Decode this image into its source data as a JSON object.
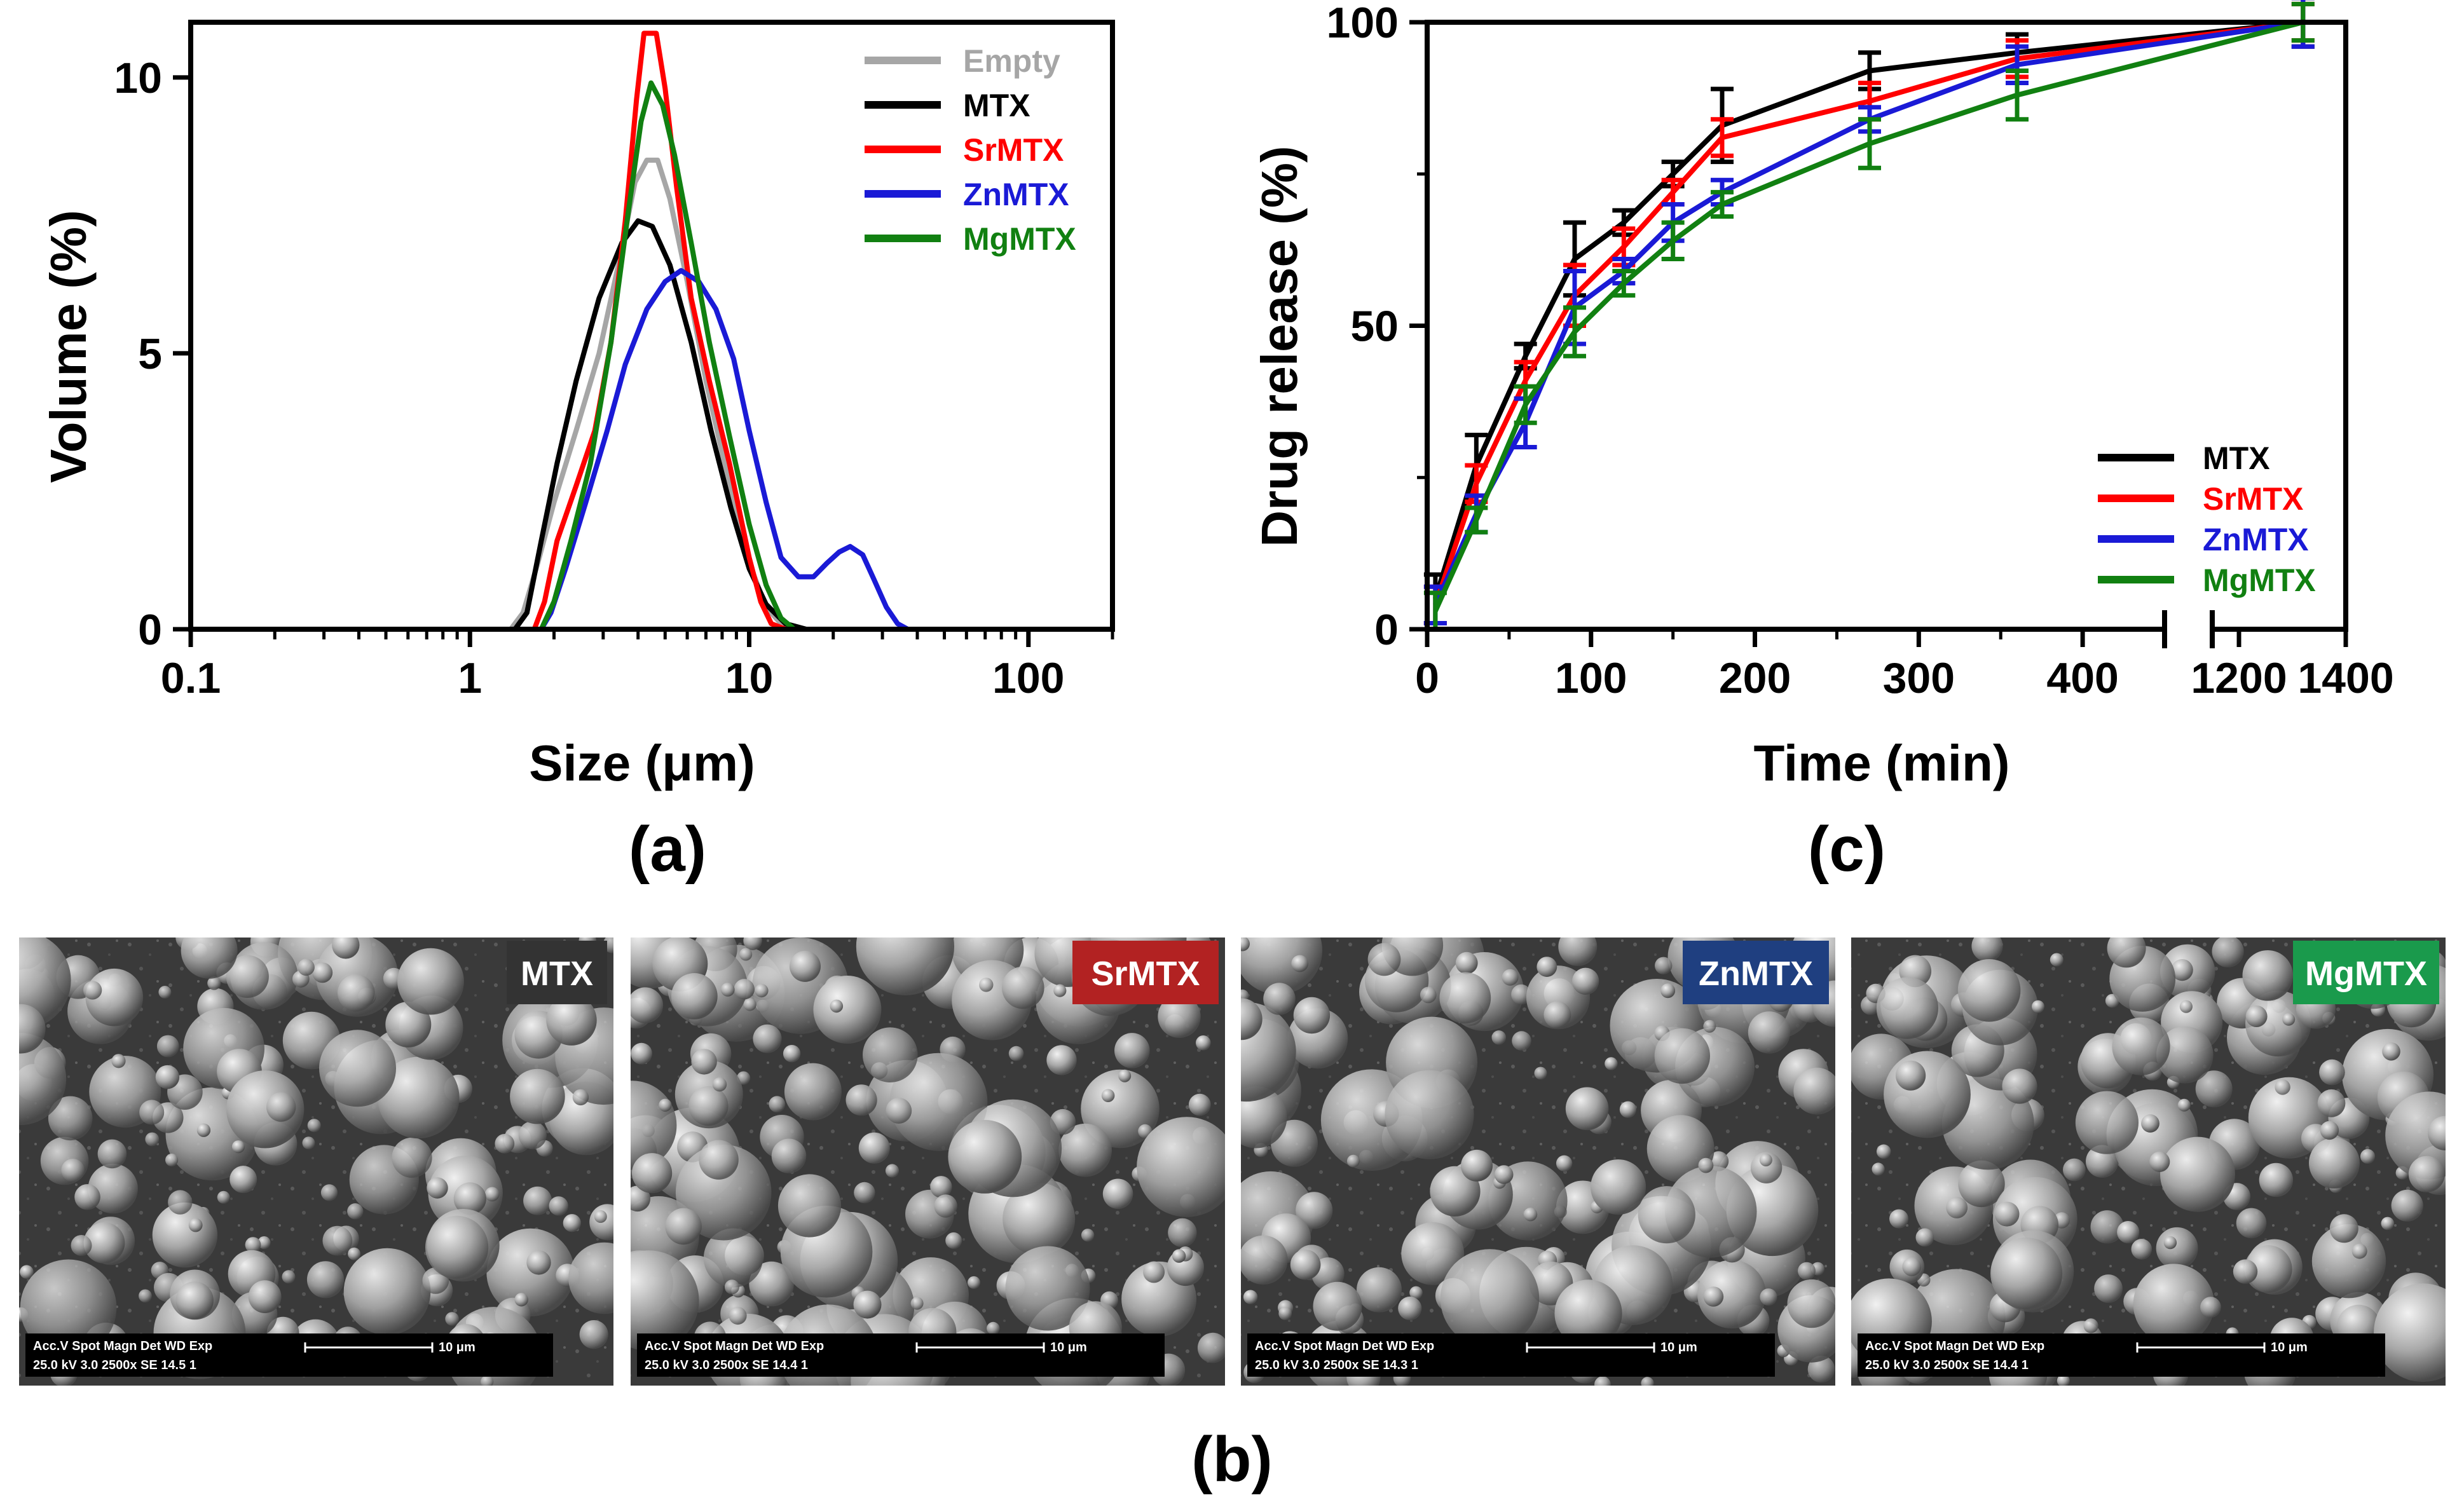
{
  "panel_labels": {
    "a": "(a)",
    "b": "(b)",
    "c": "(c)"
  },
  "colors": {
    "Empty": "#a6a6a6",
    "MTX": "#000000",
    "SrMTX": "#ff0000",
    "ZnMTX": "#1a1ad6",
    "MgMTX": "#118011"
  },
  "chart_data": [
    {
      "id": "a",
      "type": "line",
      "title": "",
      "xlabel": "Size (μm)",
      "ylabel": "Volume (%)",
      "xscale": "log",
      "xlim": [
        0.1,
        200
      ],
      "ylim": [
        0,
        11
      ],
      "xticks": [
        {
          "value": 0.1,
          "label": "0.1"
        },
        {
          "value": 1,
          "label": "1"
        },
        {
          "value": 10,
          "label": "10"
        },
        {
          "value": 100,
          "label": "100"
        }
      ],
      "yticks": [
        {
          "value": 0,
          "label": "0"
        },
        {
          "value": 5,
          "label": "5"
        },
        {
          "value": 10,
          "label": "10"
        }
      ],
      "legend_position": "top-right",
      "series": [
        {
          "name": "Empty",
          "points": [
            [
              0.1,
              0
            ],
            [
              1.4,
              0
            ],
            [
              1.55,
              0.3
            ],
            [
              1.75,
              1.2
            ],
            [
              2.0,
              2.3
            ],
            [
              2.4,
              3.6
            ],
            [
              2.9,
              5.0
            ],
            [
              3.4,
              6.6
            ],
            [
              3.9,
              8.1
            ],
            [
              4.3,
              8.5
            ],
            [
              4.7,
              8.5
            ],
            [
              5.2,
              7.8
            ],
            [
              6.0,
              6.3
            ],
            [
              7.0,
              4.5
            ],
            [
              8.5,
              2.6
            ],
            [
              10,
              1.2
            ],
            [
              11.5,
              0.4
            ],
            [
              13,
              0.1
            ],
            [
              15,
              0
            ],
            [
              200,
              0
            ]
          ]
        },
        {
          "name": "MTX",
          "points": [
            [
              0.1,
              0
            ],
            [
              1.45,
              0
            ],
            [
              1.6,
              0.3
            ],
            [
              1.8,
              1.6
            ],
            [
              2.05,
              3.0
            ],
            [
              2.4,
              4.5
            ],
            [
              2.9,
              6.0
            ],
            [
              3.5,
              7.0
            ],
            [
              4.0,
              7.4
            ],
            [
              4.5,
              7.3
            ],
            [
              5.2,
              6.6
            ],
            [
              6.2,
              5.2
            ],
            [
              7.3,
              3.6
            ],
            [
              8.6,
              2.2
            ],
            [
              10,
              1.1
            ],
            [
              11.5,
              0.45
            ],
            [
              13.5,
              0.1
            ],
            [
              16,
              0
            ],
            [
              200,
              0
            ]
          ]
        },
        {
          "name": "SrMTX",
          "points": [
            [
              0.1,
              0
            ],
            [
              1.7,
              0
            ],
            [
              1.85,
              0.5
            ],
            [
              2.05,
              1.6
            ],
            [
              2.4,
              2.6
            ],
            [
              2.8,
              3.6
            ],
            [
              3.2,
              5.2
            ],
            [
              3.6,
              7.4
            ],
            [
              3.95,
              9.6
            ],
            [
              4.2,
              10.8
            ],
            [
              4.65,
              10.8
            ],
            [
              5.0,
              9.8
            ],
            [
              5.5,
              8.0
            ],
            [
              6.2,
              6.0
            ],
            [
              7.2,
              4.5
            ],
            [
              8.5,
              3.0
            ],
            [
              10,
              1.3
            ],
            [
              11,
              0.5
            ],
            [
              12,
              0.1
            ],
            [
              13.5,
              0
            ],
            [
              200,
              0
            ]
          ]
        },
        {
          "name": "ZnMTX",
          "points": [
            [
              0.1,
              0
            ],
            [
              1.8,
              0
            ],
            [
              1.95,
              0.3
            ],
            [
              2.2,
              1.1
            ],
            [
              2.6,
              2.3
            ],
            [
              3.1,
              3.6
            ],
            [
              3.6,
              4.8
            ],
            [
              4.3,
              5.8
            ],
            [
              5.0,
              6.3
            ],
            [
              5.7,
              6.5
            ],
            [
              6.6,
              6.3
            ],
            [
              7.6,
              5.8
            ],
            [
              8.8,
              4.9
            ],
            [
              10,
              3.6
            ],
            [
              11.5,
              2.3
            ],
            [
              13,
              1.3
            ],
            [
              15,
              0.95
            ],
            [
              17,
              0.95
            ],
            [
              19,
              1.2
            ],
            [
              21,
              1.4
            ],
            [
              23,
              1.5
            ],
            [
              25.5,
              1.35
            ],
            [
              28,
              0.9
            ],
            [
              31,
              0.4
            ],
            [
              34,
              0.1
            ],
            [
              37,
              0
            ],
            [
              200,
              0
            ]
          ]
        },
        {
          "name": "MgMTX",
          "points": [
            [
              0.1,
              0
            ],
            [
              1.8,
              0
            ],
            [
              2.0,
              0.5
            ],
            [
              2.3,
              1.6
            ],
            [
              2.7,
              3.0
            ],
            [
              3.2,
              5.2
            ],
            [
              3.7,
              7.6
            ],
            [
              4.1,
              9.2
            ],
            [
              4.45,
              9.9
            ],
            [
              4.9,
              9.5
            ],
            [
              5.4,
              8.6
            ],
            [
              6.2,
              7.0
            ],
            [
              7.2,
              5.2
            ],
            [
              8.5,
              3.5
            ],
            [
              10,
              1.9
            ],
            [
              11.5,
              0.8
            ],
            [
              13,
              0.2
            ],
            [
              14.5,
              0
            ],
            [
              200,
              0
            ]
          ]
        }
      ]
    },
    {
      "id": "c",
      "type": "line",
      "title": "",
      "xlabel": "Time (min)",
      "ylabel": "Drug  release (%)",
      "xlim": [
        0,
        1400
      ],
      "x_axis_break": {
        "segment1": [
          0,
          450
        ],
        "segment2": [
          1150,
          1400
        ]
      },
      "ylim": [
        0,
        100
      ],
      "xticks": [
        {
          "value": 0,
          "label": "0"
        },
        {
          "value": 100,
          "label": "100"
        },
        {
          "value": 200,
          "label": "200"
        },
        {
          "value": 300,
          "label": "300"
        },
        {
          "value": 400,
          "label": "400"
        },
        {
          "value": 1200,
          "label": "1200"
        },
        {
          "value": 1400,
          "label": "1400"
        }
      ],
      "yticks": [
        {
          "value": 0,
          "label": "0"
        },
        {
          "value": 50,
          "label": "50"
        },
        {
          "value": 100,
          "label": "100"
        }
      ],
      "legend_position": "bottom-right",
      "series": [
        {
          "name": "MTX",
          "x": [
            5,
            30,
            60,
            90,
            120,
            150,
            180,
            270,
            360,
            1320
          ],
          "y": [
            5,
            27,
            45,
            61,
            67,
            75,
            83,
            92,
            95,
            100
          ],
          "err": [
            4,
            5,
            2,
            6,
            2,
            2,
            6,
            3,
            3,
            4
          ]
        },
        {
          "name": "SrMTX",
          "x": [
            5,
            30,
            60,
            90,
            120,
            150,
            180,
            270,
            360,
            1320
          ],
          "y": [
            4,
            24,
            41,
            55,
            63,
            72,
            81,
            87,
            94,
            100
          ],
          "err": [
            3,
            3,
            3,
            5,
            3,
            2,
            3,
            3,
            3,
            3
          ]
        },
        {
          "name": "ZnMTX",
          "x": [
            5,
            30,
            60,
            90,
            120,
            150,
            180,
            270,
            360,
            1320
          ],
          "y": [
            4,
            19,
            34,
            53,
            59,
            67,
            72,
            84,
            93,
            100
          ],
          "err": [
            3,
            3,
            4,
            6,
            2,
            3,
            2,
            2,
            3,
            4
          ]
        },
        {
          "name": "MgMTX",
          "x": [
            5,
            30,
            60,
            90,
            120,
            150,
            180,
            270,
            360,
            1320
          ],
          "y": [
            3,
            18,
            37,
            49,
            57,
            64,
            70,
            80,
            88,
            100
          ],
          "err": [
            3,
            2,
            3,
            4,
            2,
            3,
            2,
            4,
            4,
            3
          ]
        }
      ]
    }
  ],
  "sem_images": [
    {
      "label": "MTX",
      "tag_color": "#333333",
      "info_line1": "Acc.V  Spot Magn   Det  WD  Exp",
      "info_line2": "25.0 kV 3.0  2500x   SE  14.5  1",
      "scale_label": "10 μm"
    },
    {
      "label": "SrMTX",
      "tag_color": "#b22222",
      "info_line1": "Acc.V  Spot Magn   Det  WD  Exp",
      "info_line2": "25.0 kV 3.0  2500x   SE  14.4  1",
      "scale_label": "10 μm"
    },
    {
      "label": "ZnMTX",
      "tag_color": "#1f3f80",
      "info_line1": "Acc.V  Spot Magn   Det  WD  Exp",
      "info_line2": "25.0 kV 3.0  2500x   SE  14.3  1",
      "scale_label": "10 μm"
    },
    {
      "label": "MgMTX",
      "tag_color": "#1a9a4c",
      "info_line1": "Acc.V  Spot Magn   Det  WD  Exp",
      "info_line2": "25.0 kV 3.0  2500x   SE  14.4  1",
      "scale_label": "10 μm"
    }
  ]
}
